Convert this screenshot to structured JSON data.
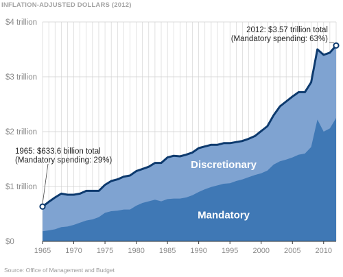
{
  "header": "INFLATION-ADJUSTED DOLLARS (2012)",
  "source": "Source: Office of Management and Budget",
  "colors": {
    "total_area": "#7fa3d1",
    "mandatory_area": "#3f78b5",
    "total_line": "#0d3a6e",
    "grid": "#cfcfcf",
    "baseline": "#333333"
  },
  "chart_data": {
    "type": "area",
    "title": "",
    "xlabel": "",
    "ylabel": "",
    "xlim": [
      1965,
      2012
    ],
    "ylim": [
      0,
      4
    ],
    "y_ticks": [
      {
        "value": 0,
        "label": "$0"
      },
      {
        "value": 1,
        "label": "$1 trillion"
      },
      {
        "value": 2,
        "label": "$2 trillion"
      },
      {
        "value": 3,
        "label": "$3 trillion"
      },
      {
        "value": 4,
        "label": "$4 trillion"
      }
    ],
    "x_ticks": [
      {
        "value": 1965,
        "label": "1965"
      },
      {
        "value": 1970,
        "label": "1970"
      },
      {
        "value": 1975,
        "label": "1975"
      },
      {
        "value": 1980,
        "label": "1980"
      },
      {
        "value": 1985,
        "label": "1985"
      },
      {
        "value": 1990,
        "label": "1990"
      },
      {
        "value": 1995,
        "label": "1995"
      },
      {
        "value": 2000,
        "label": "2000"
      },
      {
        "value": 2005,
        "label": "2005"
      },
      {
        "value": 2010,
        "label": "2010"
      }
    ],
    "grid": true,
    "x": [
      1965,
      1966,
      1967,
      1968,
      1969,
      1970,
      1971,
      1972,
      1973,
      1974,
      1975,
      1976,
      1977,
      1978,
      1979,
      1980,
      1981,
      1982,
      1983,
      1984,
      1985,
      1986,
      1987,
      1988,
      1989,
      1990,
      1991,
      1992,
      1993,
      1994,
      1995,
      1996,
      1997,
      1998,
      1999,
      2000,
      2001,
      2002,
      2003,
      2004,
      2005,
      2006,
      2007,
      2008,
      2009,
      2010,
      2011,
      2012
    ],
    "series": [
      {
        "name": "Discretionary",
        "role": "total",
        "values": [
          0.634,
          0.72,
          0.8,
          0.87,
          0.85,
          0.85,
          0.87,
          0.92,
          0.92,
          0.92,
          1.03,
          1.1,
          1.13,
          1.18,
          1.2,
          1.28,
          1.32,
          1.36,
          1.43,
          1.43,
          1.53,
          1.56,
          1.55,
          1.58,
          1.62,
          1.7,
          1.73,
          1.76,
          1.76,
          1.79,
          1.79,
          1.81,
          1.83,
          1.87,
          1.92,
          2.01,
          2.1,
          2.3,
          2.46,
          2.55,
          2.64,
          2.72,
          2.72,
          2.9,
          3.5,
          3.4,
          3.44,
          3.57
        ]
      },
      {
        "name": "Mandatory",
        "role": "mandatory",
        "values": [
          0.184,
          0.2,
          0.22,
          0.26,
          0.27,
          0.3,
          0.34,
          0.38,
          0.4,
          0.44,
          0.52,
          0.55,
          0.56,
          0.58,
          0.58,
          0.65,
          0.7,
          0.73,
          0.76,
          0.73,
          0.77,
          0.78,
          0.78,
          0.8,
          0.84,
          0.9,
          0.95,
          0.99,
          1.02,
          1.05,
          1.06,
          1.1,
          1.13,
          1.17,
          1.21,
          1.24,
          1.29,
          1.4,
          1.46,
          1.49,
          1.53,
          1.58,
          1.6,
          1.72,
          2.22,
          2.0,
          2.06,
          2.25
        ]
      }
    ],
    "annotations": [
      {
        "x": 1965,
        "y": 0.634,
        "lines": [
          "1965: $633.6 billion total",
          "(Mandatory spending: 29%)"
        ]
      },
      {
        "x": 2012,
        "y": 3.57,
        "lines": [
          "2012: $3.57 trillion total",
          "(Mandatory spending: 63%)"
        ]
      }
    ]
  }
}
